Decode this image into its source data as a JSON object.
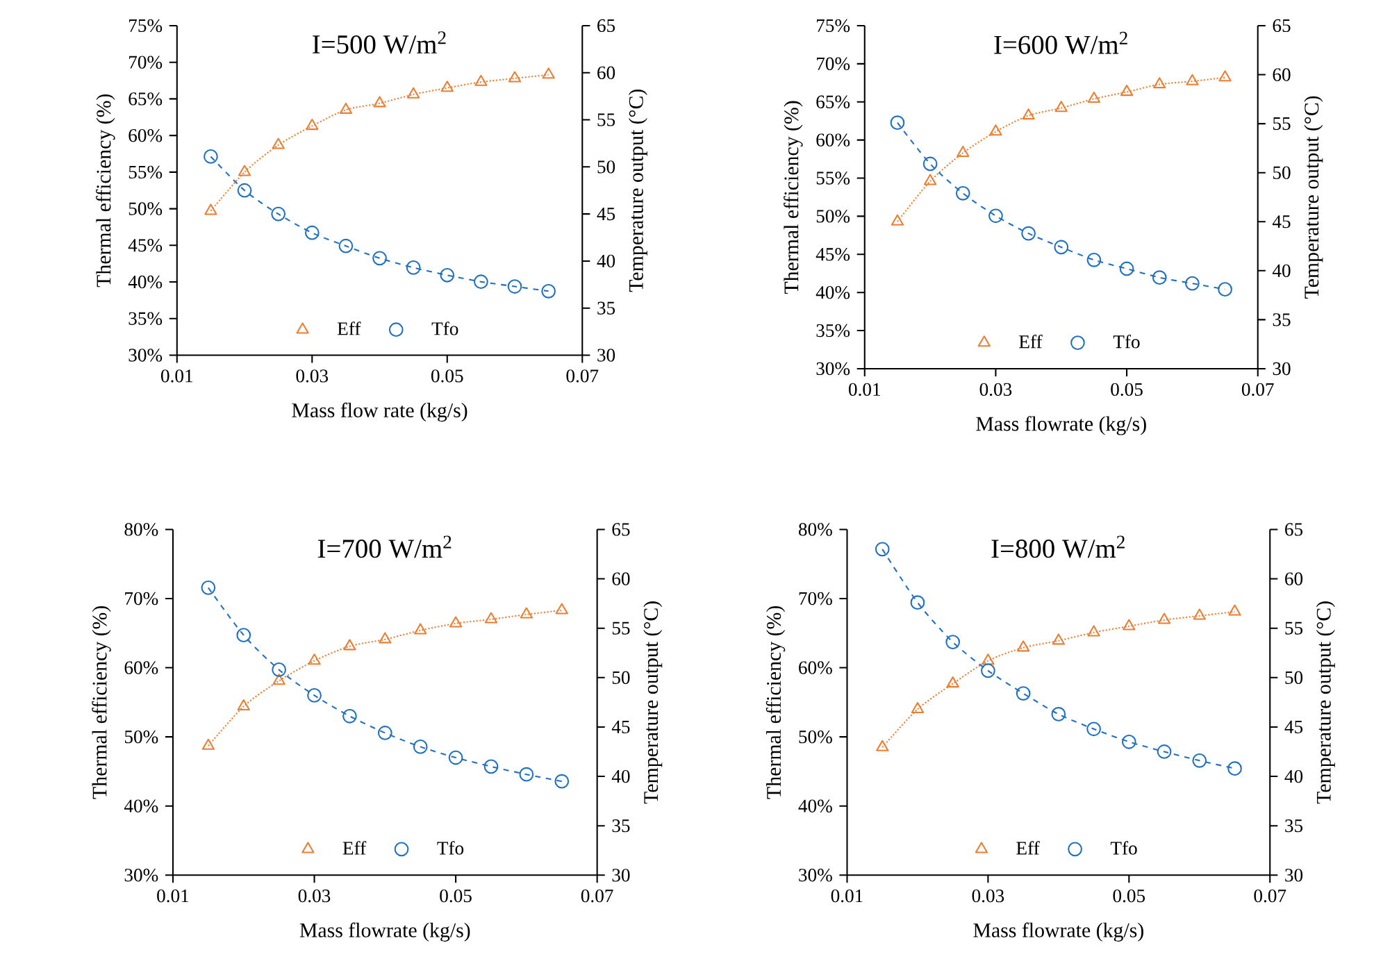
{
  "chart_data": [
    {
      "type": "line",
      "title": "I=500 W/m$^{2}$",
      "xlabel": "Mass flow rate (kg/s)",
      "ylabel": "Thermal efficiency (%)",
      "y2label": "Temperature output (°C)",
      "x": [
        0.015,
        0.02,
        0.025,
        0.03,
        0.035,
        0.04,
        0.045,
        0.05,
        0.055,
        0.06,
        0.065
      ],
      "xlim": [
        0.01,
        0.07
      ],
      "xticks": [
        0.01,
        0.03,
        0.05,
        0.07
      ],
      "ylim": [
        30,
        75
      ],
      "yticks": [
        {
          "value": 30,
          "label": "30%"
        },
        {
          "value": 35,
          "label": "35%"
        },
        {
          "value": 40,
          "label": "40%"
        },
        {
          "value": 45,
          "label": "45%"
        },
        {
          "value": 50,
          "label": "50%"
        },
        {
          "value": 55,
          "label": "55%"
        },
        {
          "value": 60,
          "label": "60%"
        },
        {
          "value": 65,
          "label": "65%"
        },
        {
          "value": 70,
          "label": "70%"
        },
        {
          "value": 75,
          "label": "75%"
        }
      ],
      "y2lim": [
        30,
        65
      ],
      "y2ticks": [
        30,
        35,
        40,
        45,
        50,
        55,
        60,
        65
      ],
      "legend": "bottom",
      "series": [
        {
          "name": "Eff",
          "color": "#ed7d31",
          "marker": "triangle",
          "line_style": "dotted",
          "values": [
            49.7,
            55.0,
            58.7,
            61.3,
            63.5,
            64.4,
            65.6,
            66.5,
            67.3,
            67.8,
            68.3
          ]
        },
        {
          "name": "Tfo",
          "color": "#1f6fc5",
          "marker": "circle",
          "line_style": "dashed",
          "axis": "y2",
          "values": [
            51.1,
            47.5,
            45.0,
            43.0,
            41.6,
            40.3,
            39.3,
            38.5,
            37.8,
            37.3,
            36.8
          ]
        }
      ]
    },
    {
      "type": "line",
      "title": "I=600 W/m$^{2}$",
      "xlabel": "Mass flowrate (kg/s)",
      "ylabel": "Thermal efficiency (%)",
      "y2label": "Temperature output (°C)",
      "x": [
        0.015,
        0.02,
        0.025,
        0.03,
        0.035,
        0.04,
        0.045,
        0.05,
        0.055,
        0.06,
        0.065
      ],
      "xlim": [
        0.01,
        0.07
      ],
      "xticks": [
        0.01,
        0.03,
        0.05,
        0.07
      ],
      "ylim": [
        30,
        75
      ],
      "yticks": [
        {
          "value": 30,
          "label": "30%"
        },
        {
          "value": 35,
          "label": "35%"
        },
        {
          "value": 40,
          "label": "40%"
        },
        {
          "value": 45,
          "label": "45%"
        },
        {
          "value": 50,
          "label": "50%"
        },
        {
          "value": 55,
          "label": "55%"
        },
        {
          "value": 60,
          "label": "60%"
        },
        {
          "value": 65,
          "label": "65%"
        },
        {
          "value": 70,
          "label": "70%"
        },
        {
          "value": 75,
          "label": "75%"
        }
      ],
      "y2lim": [
        30,
        65
      ],
      "y2ticks": [
        30,
        35,
        40,
        45,
        50,
        55,
        60,
        65
      ],
      "legend": "bottom",
      "series": [
        {
          "name": "Eff",
          "color": "#ed7d31",
          "marker": "triangle",
          "line_style": "dotted",
          "values": [
            49.3,
            54.6,
            58.3,
            61.1,
            63.2,
            64.2,
            65.4,
            66.3,
            67.3,
            67.7,
            68.2
          ]
        },
        {
          "name": "Tfo",
          "color": "#1f6fc5",
          "marker": "circle",
          "line_style": "dashed",
          "axis": "y2",
          "values": [
            55.1,
            50.9,
            47.9,
            45.6,
            43.8,
            42.4,
            41.1,
            40.2,
            39.3,
            38.7,
            38.1
          ]
        }
      ]
    },
    {
      "type": "line",
      "title": "I=700 W/m$^{2}$",
      "xlabel": "Mass flowrate (kg/s)",
      "ylabel": "Thermal efficiency (%)",
      "y2label": "Temperature output (°C)",
      "x": [
        0.015,
        0.02,
        0.025,
        0.03,
        0.035,
        0.04,
        0.045,
        0.05,
        0.055,
        0.06,
        0.065
      ],
      "xlim": [
        0.01,
        0.07
      ],
      "xticks": [
        0.01,
        0.03,
        0.05,
        0.07
      ],
      "ylim": [
        30,
        80
      ],
      "yticks": [
        {
          "value": 30,
          "label": "30%"
        },
        {
          "value": 40,
          "label": "40%"
        },
        {
          "value": 50,
          "label": "50%"
        },
        {
          "value": 60,
          "label": "60%"
        },
        {
          "value": 70,
          "label": "70%"
        },
        {
          "value": 80,
          "label": "80%"
        }
      ],
      "y2lim": [
        30,
        65
      ],
      "y2ticks": [
        30,
        35,
        40,
        45,
        50,
        55,
        60,
        65
      ],
      "legend": "bottom",
      "series": [
        {
          "name": "Eff",
          "color": "#ed7d31",
          "marker": "triangle",
          "line_style": "dotted",
          "values": [
            48.7,
            54.4,
            58.1,
            61.0,
            63.1,
            64.1,
            65.4,
            66.4,
            67.0,
            67.7,
            68.3
          ]
        },
        {
          "name": "Tfo",
          "color": "#1f6fc5",
          "marker": "circle",
          "line_style": "dashed",
          "axis": "y2",
          "values": [
            59.1,
            54.3,
            50.8,
            48.2,
            46.1,
            44.4,
            43.0,
            41.9,
            41.0,
            40.2,
            39.5
          ]
        }
      ]
    },
    {
      "type": "line",
      "title": "I=800 W/m$^{2}$",
      "xlabel": "Mass flowrate (kg/s)",
      "ylabel": "Thermal efficiency (%)",
      "y2label": "Temperature output (°C)",
      "x": [
        0.015,
        0.02,
        0.025,
        0.03,
        0.035,
        0.04,
        0.045,
        0.05,
        0.055,
        0.06,
        0.065
      ],
      "xlim": [
        0.01,
        0.07
      ],
      "xticks": [
        0.01,
        0.03,
        0.05,
        0.07
      ],
      "ylim": [
        30,
        80
      ],
      "yticks": [
        {
          "value": 30,
          "label": "30%"
        },
        {
          "value": 40,
          "label": "40%"
        },
        {
          "value": 50,
          "label": "50%"
        },
        {
          "value": 60,
          "label": "60%"
        },
        {
          "value": 70,
          "label": "70%"
        },
        {
          "value": 80,
          "label": "80%"
        }
      ],
      "y2lim": [
        30,
        65
      ],
      "y2ticks": [
        30,
        35,
        40,
        45,
        50,
        55,
        60,
        65
      ],
      "legend": "bottom",
      "series": [
        {
          "name": "Eff",
          "color": "#ed7d31",
          "marker": "triangle",
          "line_style": "dotted",
          "values": [
            48.5,
            54.0,
            57.7,
            61.0,
            62.9,
            63.9,
            65.1,
            66.0,
            66.9,
            67.5,
            68.1
          ]
        },
        {
          "name": "Tfo",
          "color": "#1f6fc5",
          "marker": "circle",
          "line_style": "dashed",
          "axis": "y2",
          "values": [
            63.0,
            57.6,
            53.6,
            50.7,
            48.4,
            46.3,
            44.8,
            43.5,
            42.5,
            41.6,
            40.8
          ]
        }
      ]
    }
  ]
}
